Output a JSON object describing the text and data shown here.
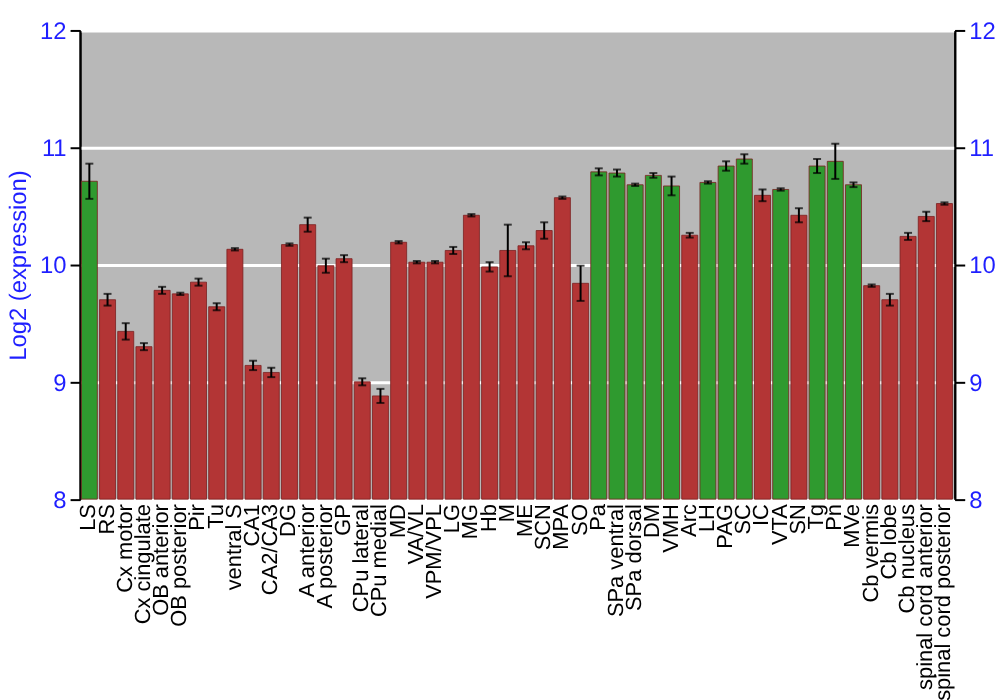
{
  "chart_data": {
    "type": "bar",
    "ylabel": "Log2 (expression)",
    "categories": [
      "LS",
      "RS",
      "Cx motor",
      "Cx cingulate",
      "OB anterior",
      "OB posterior",
      "Pir",
      "Tu",
      "ventral S",
      "CA1",
      "CA2/CA3",
      "DG",
      "A anterior",
      "A posterior",
      "GP",
      "CPu lateral",
      "CPu medial",
      "MD",
      "VA/VL",
      "VPM/VPL",
      "LG",
      "MG",
      "Hb",
      "M",
      "ME",
      "SCN",
      "MPA",
      "SO",
      "Pa",
      "SPa ventral",
      "SPa dorsal",
      "DM",
      "VMH",
      "Arc",
      "LH",
      "PAG",
      "SC",
      "IC",
      "VTA",
      "SN",
      "Tg",
      "Pn",
      "MVe",
      "Cb vermis",
      "Cb lobe",
      "Cb nucleus",
      "spinal cord anterior",
      "spinal cord posterior"
    ],
    "values": [
      10.71,
      9.7,
      9.43,
      9.3,
      9.78,
      9.75,
      9.85,
      9.64,
      10.13,
      9.14,
      9.08,
      10.17,
      10.34,
      9.99,
      10.05,
      9.0,
      8.88,
      10.19,
      10.02,
      10.02,
      10.12,
      10.42,
      9.98,
      10.12,
      10.16,
      10.29,
      10.57,
      9.84,
      10.79,
      10.78,
      10.68,
      10.76,
      10.67,
      10.25,
      10.7,
      10.84,
      10.9,
      10.59,
      10.64,
      10.42,
      10.84,
      10.88,
      10.68,
      9.82,
      9.7,
      10.24,
      10.41,
      10.52
    ],
    "errors": [
      0.15,
      0.05,
      0.07,
      0.03,
      0.03,
      0.01,
      0.03,
      0.03,
      0.01,
      0.04,
      0.04,
      0.01,
      0.06,
      0.06,
      0.03,
      0.03,
      0.06,
      0.01,
      0.01,
      0.01,
      0.03,
      0.01,
      0.04,
      0.22,
      0.03,
      0.07,
      0.01,
      0.15,
      0.03,
      0.03,
      0.01,
      0.02,
      0.08,
      0.02,
      0.01,
      0.04,
      0.04,
      0.05,
      0.01,
      0.06,
      0.06,
      0.15,
      0.02,
      0.01,
      0.05,
      0.03,
      0.04,
      0.01
    ],
    "colors": [
      "#2f9a2f",
      "#b33535",
      "#b33535",
      "#b33535",
      "#b33535",
      "#b33535",
      "#b33535",
      "#b33535",
      "#b33535",
      "#b33535",
      "#b33535",
      "#b33535",
      "#b33535",
      "#b33535",
      "#b33535",
      "#b33535",
      "#b33535",
      "#b33535",
      "#b33535",
      "#b33535",
      "#b33535",
      "#b33535",
      "#b33535",
      "#b33535",
      "#b33535",
      "#b33535",
      "#b33535",
      "#b33535",
      "#2f9a2f",
      "#2f9a2f",
      "#2f9a2f",
      "#2f9a2f",
      "#2f9a2f",
      "#b33535",
      "#2f9a2f",
      "#2f9a2f",
      "#2f9a2f",
      "#b33535",
      "#2f9a2f",
      "#b33535",
      "#2f9a2f",
      "#2f9a2f",
      "#2f9a2f",
      "#b33535",
      "#b33535",
      "#b33535",
      "#b33535",
      "#b33535"
    ],
    "ylim": [
      8,
      12
    ],
    "yticks": [
      8,
      9,
      10,
      11,
      12
    ],
    "y2lim": [
      8,
      12
    ],
    "y2ticks": [
      8,
      9,
      10,
      11,
      12
    ],
    "grid": "y"
  }
}
